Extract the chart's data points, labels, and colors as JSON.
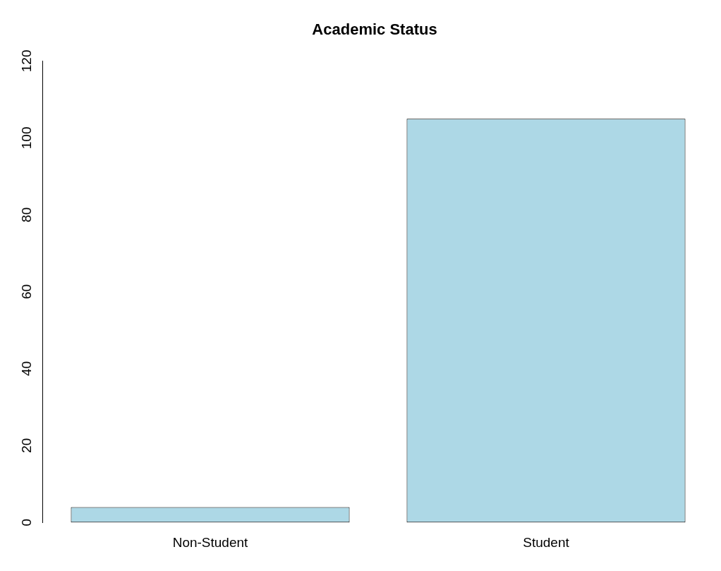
{
  "chart_data": {
    "type": "bar",
    "title": "Academic Status",
    "categories": [
      "Non-Student",
      "Student"
    ],
    "values": [
      4,
      105
    ],
    "color": "#add8e6",
    "ylim": [
      0,
      120
    ],
    "yticks": [
      0,
      20,
      40,
      60,
      80,
      100,
      120
    ],
    "grid": false,
    "legend": false
  }
}
